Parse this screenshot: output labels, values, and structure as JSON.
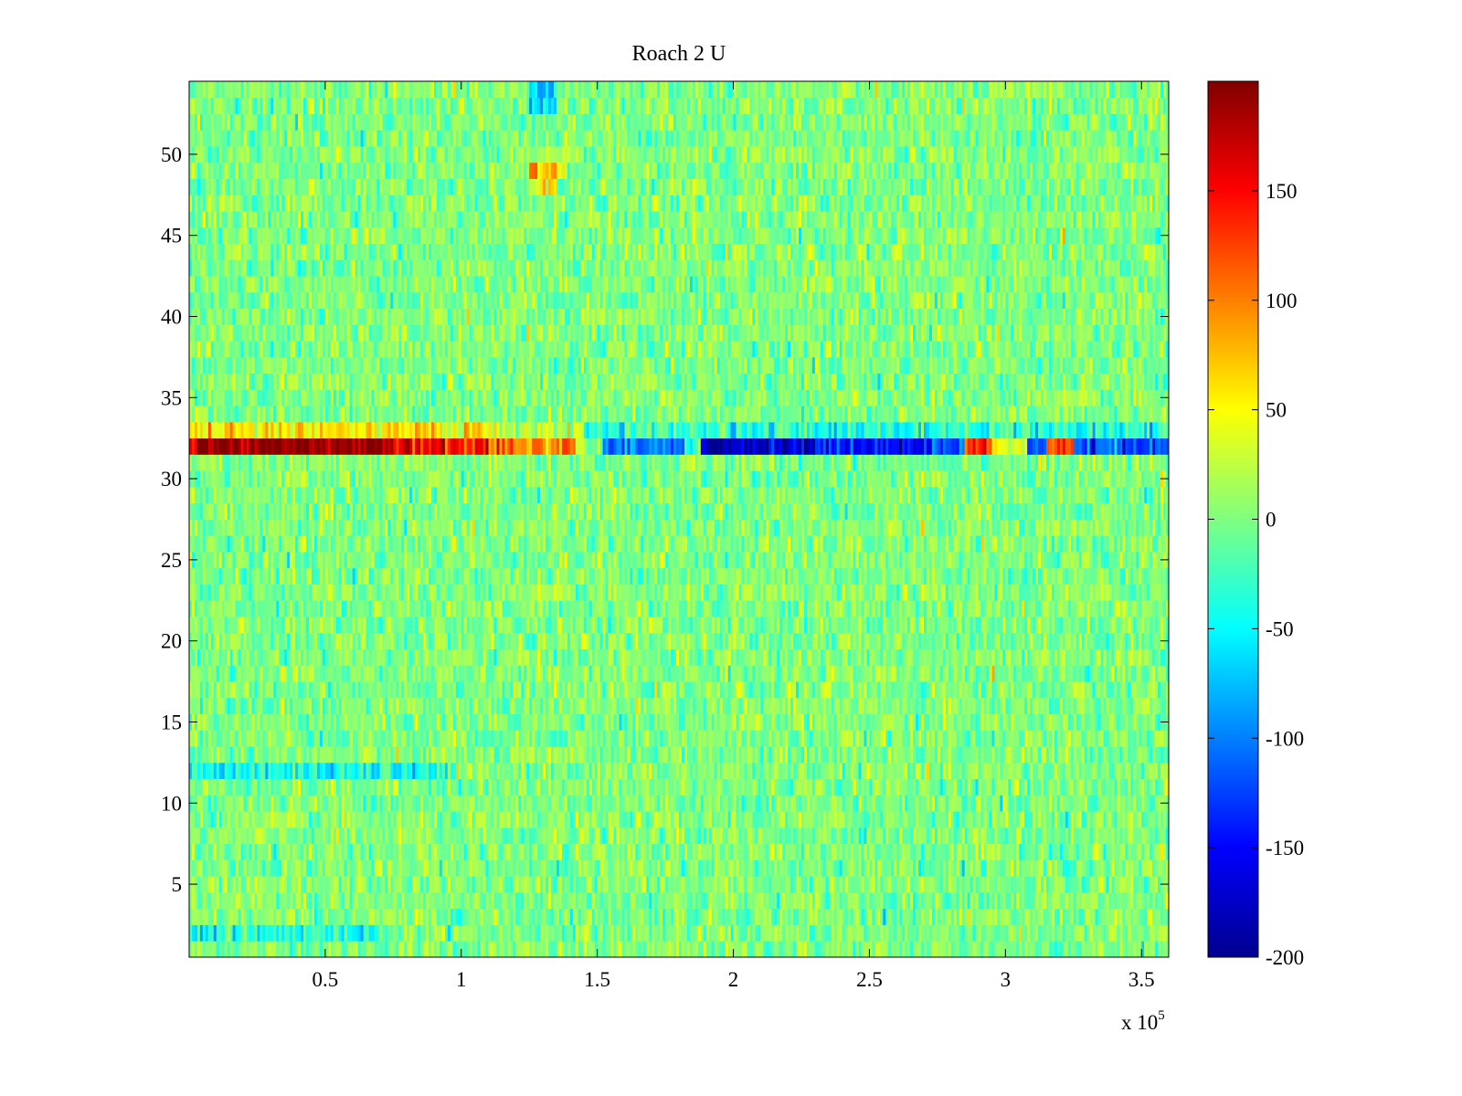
{
  "chart_data": {
    "type": "heatmap",
    "title": "Roach 2 U",
    "xlabel": "",
    "ylabel": "",
    "x_multiplier_label": "x 10",
    "x_multiplier_exponent": "5",
    "xlim": [
      0,
      3.6
    ],
    "ylim": [
      0.5,
      54.5
    ],
    "n_rows": 54,
    "n_cols": 360,
    "x_ticks": [
      0.5,
      1,
      1.5,
      2,
      2.5,
      3,
      3.5
    ],
    "x_tick_labels": [
      "0.5",
      "1",
      "1.5",
      "2",
      "2.5",
      "3",
      "3.5"
    ],
    "y_ticks": [
      5,
      10,
      15,
      20,
      25,
      30,
      35,
      40,
      45,
      50
    ],
    "y_tick_labels": [
      "5",
      "10",
      "15",
      "20",
      "25",
      "30",
      "35",
      "40",
      "45",
      "50"
    ],
    "colorbar": {
      "colormap": "jet",
      "clim": [
        -200,
        200
      ],
      "ticks": [
        150,
        100,
        50,
        0,
        -50,
        -100,
        -150,
        -200
      ],
      "tick_labels": [
        "150",
        "100",
        "50",
        "0",
        "-50",
        "-100",
        "-150",
        "-200"
      ]
    },
    "background_level": 0,
    "background_noise": 20,
    "features": [
      {
        "row": 32,
        "x_range": [
          0.0,
          0.75
        ],
        "value": 195,
        "description": "saturated positive band"
      },
      {
        "row": 32,
        "x_range": [
          0.75,
          1.1
        ],
        "value": 150
      },
      {
        "row": 32,
        "x_range": [
          1.1,
          1.42
        ],
        "value": 100
      },
      {
        "row": 32,
        "x_range": [
          1.42,
          1.52
        ],
        "value": 0
      },
      {
        "row": 32,
        "x_range": [
          1.52,
          1.82
        ],
        "value": -110
      },
      {
        "row": 32,
        "x_range": [
          1.82,
          1.88
        ],
        "value": -20
      },
      {
        "row": 32,
        "x_range": [
          1.88,
          2.3
        ],
        "value": -175
      },
      {
        "row": 32,
        "x_range": [
          2.3,
          2.85
        ],
        "value": -140
      },
      {
        "row": 32,
        "x_range": [
          2.85,
          2.95
        ],
        "value": 140
      },
      {
        "row": 32,
        "x_range": [
          2.95,
          3.08
        ],
        "value": 40
      },
      {
        "row": 32,
        "x_range": [
          3.08,
          3.15
        ],
        "value": -110
      },
      {
        "row": 32,
        "x_range": [
          3.15,
          3.25
        ],
        "value": 120
      },
      {
        "row": 32,
        "x_range": [
          3.25,
          3.6
        ],
        "value": -120
      },
      {
        "row": 33,
        "x_range": [
          0.0,
          1.15
        ],
        "value": 55
      },
      {
        "row": 33,
        "x_range": [
          1.15,
          1.45
        ],
        "value": 20
      },
      {
        "row": 33,
        "x_range": [
          1.45,
          3.6
        ],
        "value": -35
      },
      {
        "row": 12,
        "x_range": [
          0.0,
          0.95
        ],
        "value": -45
      },
      {
        "row": 2,
        "x_range": [
          0.0,
          0.7
        ],
        "value": -35
      },
      {
        "row": 54,
        "x_range": [
          1.25,
          1.35
        ],
        "value": -70
      },
      {
        "row": 53,
        "x_range": [
          1.25,
          1.35
        ],
        "value": -60
      },
      {
        "row": 49,
        "x_range": [
          1.25,
          1.38
        ],
        "value": 70
      },
      {
        "row": 48,
        "x_range": [
          1.25,
          1.35
        ],
        "value": 55
      }
    ]
  }
}
